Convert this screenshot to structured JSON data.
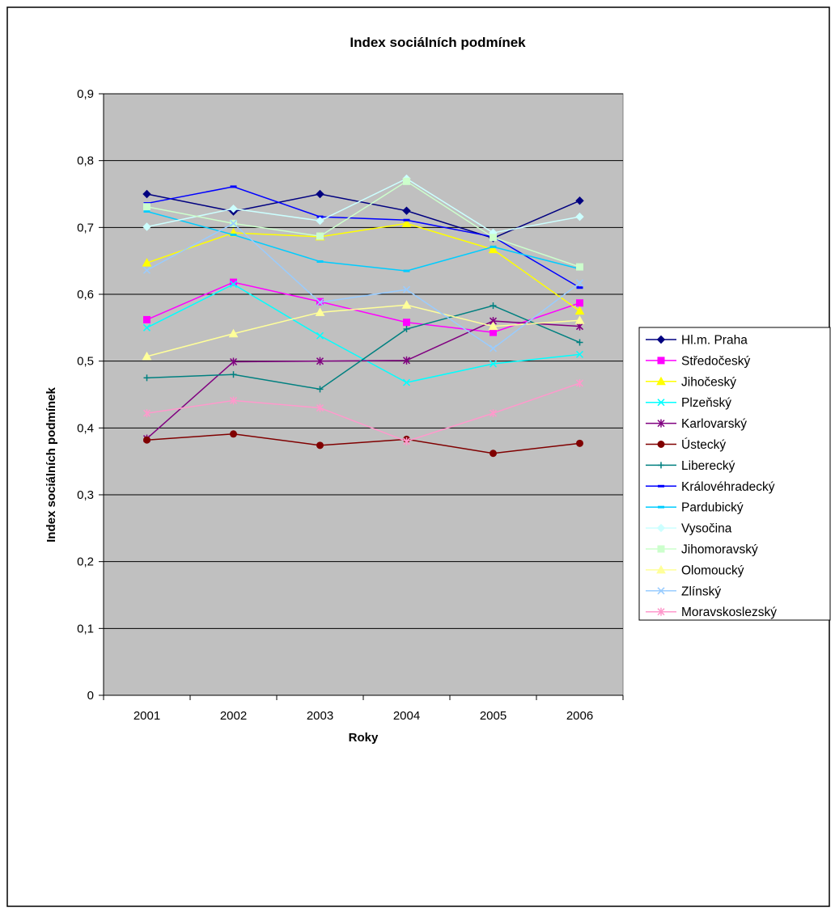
{
  "chart_data": {
    "type": "line",
    "title": "Index sociálních podmínek",
    "xlabel": "Roky",
    "ylabel": "Index sociálních podmínek",
    "categories": [
      "2001",
      "2002",
      "2003",
      "2004",
      "2005",
      "2006"
    ],
    "ylim": [
      0,
      0.9
    ],
    "yticks": [
      "0",
      "0,1",
      "0,2",
      "0,3",
      "0,4",
      "0,5",
      "0,6",
      "0,7",
      "0,8",
      "0,9"
    ],
    "ytick_values": [
      0,
      0.1,
      0.2,
      0.3,
      0.4,
      0.5,
      0.6,
      0.7,
      0.8,
      0.9
    ],
    "grid": true,
    "legend_position": "right",
    "plot_background": "#c0c0c0",
    "series": [
      {
        "name": "Hl.m. Praha",
        "color": "#000080",
        "marker": "diamond",
        "values": [
          0.75,
          0.724,
          0.75,
          0.725,
          0.684,
          0.74
        ]
      },
      {
        "name": "Středočeský",
        "color": "#ff00ff",
        "marker": "square",
        "values": [
          0.562,
          0.618,
          0.589,
          0.558,
          0.543,
          0.587
        ]
      },
      {
        "name": "Jihočeský",
        "color": "#ffff00",
        "marker": "triangle",
        "values": [
          0.647,
          0.692,
          0.686,
          0.706,
          0.667,
          0.575
        ]
      },
      {
        "name": "Plzeňský",
        "color": "#00ffff",
        "marker": "x",
        "values": [
          0.55,
          0.615,
          0.538,
          0.468,
          0.496,
          0.51
        ]
      },
      {
        "name": "Karlovarský",
        "color": "#800080",
        "marker": "star",
        "values": [
          0.384,
          0.499,
          0.5,
          0.501,
          0.56,
          0.552
        ]
      },
      {
        "name": "Ústecký",
        "color": "#800000",
        "marker": "circle",
        "values": [
          0.382,
          0.391,
          0.374,
          0.383,
          0.362,
          0.377
        ]
      },
      {
        "name": "Liberecký",
        "color": "#008080",
        "marker": "plus",
        "values": [
          0.475,
          0.48,
          0.458,
          0.548,
          0.583,
          0.528
        ]
      },
      {
        "name": "Královéhradecký",
        "color": "#0000ff",
        "marker": "dash",
        "values": [
          0.736,
          0.761,
          0.716,
          0.711,
          0.686,
          0.61
        ]
      },
      {
        "name": "Pardubický",
        "color": "#00ccff",
        "marker": "dash",
        "values": [
          0.724,
          0.689,
          0.649,
          0.635,
          0.671,
          0.638
        ]
      },
      {
        "name": "Vysočina",
        "color": "#ccffff",
        "marker": "diamond",
        "values": [
          0.701,
          0.728,
          0.71,
          0.773,
          0.692,
          0.716
        ]
      },
      {
        "name": "Jihomoravský",
        "color": "#ccffcc",
        "marker": "square",
        "values": [
          0.731,
          0.706,
          0.687,
          0.769,
          0.685,
          0.641
        ]
      },
      {
        "name": "Olomoucký",
        "color": "#ffff99",
        "marker": "triangle",
        "values": [
          0.507,
          0.541,
          0.573,
          0.584,
          0.552,
          0.561
        ]
      },
      {
        "name": "Zlínský",
        "color": "#99ccff",
        "marker": "x",
        "values": [
          0.636,
          0.706,
          0.588,
          0.607,
          0.519,
          0.617
        ]
      },
      {
        "name": "Moravskoslezský",
        "color": "#ff99cc",
        "marker": "star",
        "values": [
          0.422,
          0.441,
          0.43,
          0.38,
          0.422,
          0.467
        ]
      }
    ]
  }
}
